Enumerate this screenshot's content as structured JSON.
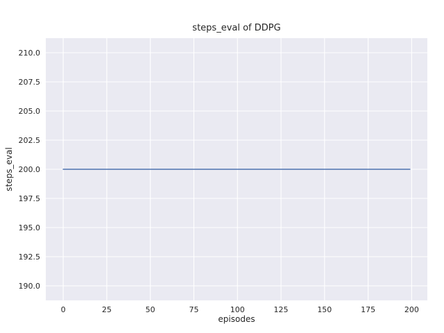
{
  "chart_data": {
    "type": "line",
    "title": "steps_eval of DDPG",
    "xlabel": "episodes",
    "ylabel": "steps_eval",
    "xlim": [
      -10,
      209
    ],
    "ylim": [
      188.75,
      211.25
    ],
    "xticks": [
      0,
      25,
      50,
      75,
      100,
      125,
      150,
      175,
      200
    ],
    "xtick_labels": [
      "0",
      "25",
      "50",
      "75",
      "100",
      "125",
      "150",
      "175",
      "200"
    ],
    "yticks": [
      190.0,
      192.5,
      195.0,
      197.5,
      200.0,
      202.5,
      205.0,
      207.5,
      210.0
    ],
    "ytick_labels": [
      "190.0",
      "192.5",
      "195.0",
      "197.5",
      "200.0",
      "202.5",
      "205.0",
      "207.5",
      "210.0"
    ],
    "grid": true,
    "legend_position": "none",
    "panel_color": "#eaeaf2",
    "grid_color": "#ffffff",
    "series": [
      {
        "name": "steps_eval",
        "color": "#4c72b0",
        "x": [
          0,
          199
        ],
        "y": [
          200.0,
          200.0
        ]
      }
    ]
  }
}
